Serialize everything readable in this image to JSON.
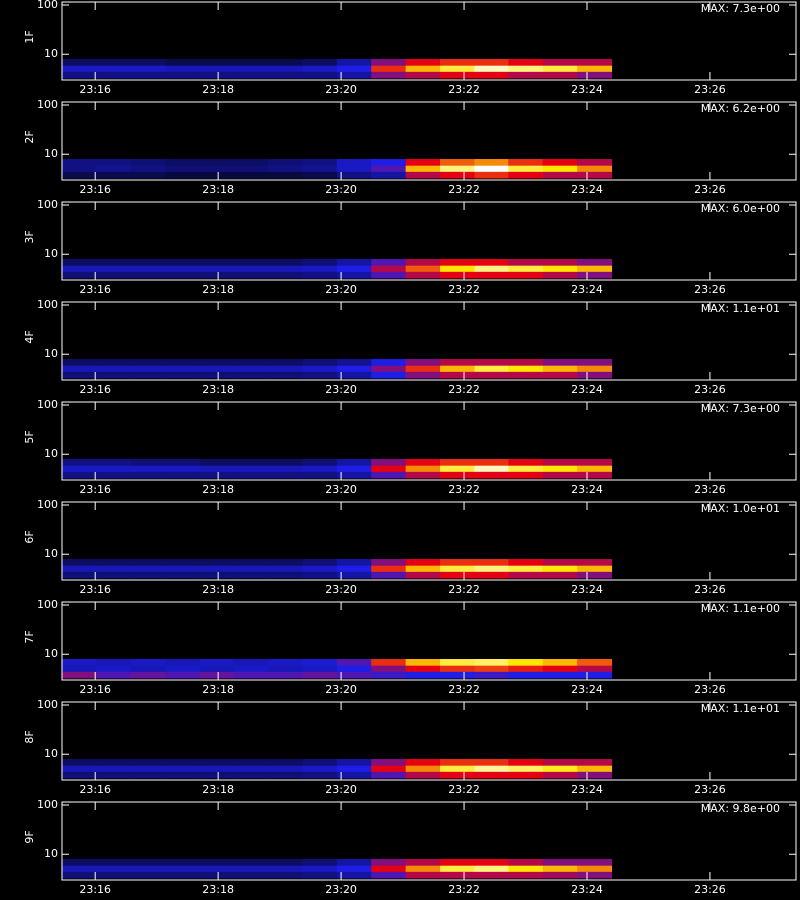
{
  "chart_data": {
    "type": "heatmap",
    "log_y": true,
    "xlim": [
      15.46,
      27.4
    ],
    "xticks": [
      {
        "value": 16,
        "label": "23:16"
      },
      {
        "value": 18,
        "label": "23:18"
      },
      {
        "value": 20,
        "label": "23:20"
      },
      {
        "value": 22,
        "label": "23:22"
      },
      {
        "value": 24,
        "label": "23:24"
      },
      {
        "value": 26,
        "label": "23:26"
      }
    ],
    "ylim": [
      3,
      115
    ],
    "yticks": [
      10,
      100
    ],
    "time_bins": [
      15.46,
      16.02,
      16.58,
      17.14,
      17.7,
      18.25,
      18.81,
      19.37,
      19.93,
      20.49,
      21.05,
      21.61,
      22.17,
      22.72,
      23.28,
      23.84,
      24.4
    ],
    "energy_bins": [
      3.3,
      4.5,
      6,
      8
    ],
    "panels": [
      {
        "label": "1F",
        "max_label": "MAX: 7.3e+00",
        "z": [
          [
            0.2,
            0.2,
            0.2,
            0.2,
            0.2,
            0.2,
            0.2,
            0.2,
            0.25,
            0.45,
            0.5,
            0.55,
            0.55,
            0.5,
            0.5,
            0.45
          ],
          [
            0.3,
            0.3,
            0.3,
            0.28,
            0.28,
            0.28,
            0.28,
            0.3,
            0.35,
            0.6,
            0.75,
            0.85,
            0.95,
            0.9,
            0.85,
            0.75
          ],
          [
            0.15,
            0.15,
            0.15,
            0.12,
            0.12,
            0.12,
            0.12,
            0.15,
            0.25,
            0.45,
            0.55,
            0.6,
            0.6,
            0.55,
            0.5,
            0.5
          ]
        ]
      },
      {
        "label": "2F",
        "max_label": "MAX: 6.2e+00",
        "z": [
          [
            0.12,
            0.12,
            0.12,
            0.1,
            0.1,
            0.1,
            0.1,
            0.12,
            0.2,
            0.25,
            0.5,
            0.55,
            0.6,
            0.55,
            0.5,
            0.5
          ],
          [
            0.2,
            0.22,
            0.2,
            0.18,
            0.18,
            0.18,
            0.2,
            0.22,
            0.3,
            0.4,
            0.75,
            0.9,
            1.0,
            0.85,
            0.8,
            0.7
          ],
          [
            0.2,
            0.2,
            0.18,
            0.15,
            0.15,
            0.15,
            0.18,
            0.2,
            0.3,
            0.35,
            0.55,
            0.65,
            0.7,
            0.6,
            0.55,
            0.5
          ]
        ]
      },
      {
        "label": "3F",
        "max_label": "MAX: 6.0e+00",
        "z": [
          [
            0.18,
            0.18,
            0.18,
            0.18,
            0.18,
            0.18,
            0.18,
            0.2,
            0.25,
            0.4,
            0.5,
            0.55,
            0.55,
            0.55,
            0.5,
            0.45
          ],
          [
            0.28,
            0.28,
            0.28,
            0.28,
            0.28,
            0.28,
            0.28,
            0.3,
            0.35,
            0.5,
            0.65,
            0.8,
            0.9,
            0.85,
            0.8,
            0.75
          ],
          [
            0.15,
            0.15,
            0.15,
            0.15,
            0.15,
            0.15,
            0.15,
            0.18,
            0.25,
            0.4,
            0.5,
            0.55,
            0.55,
            0.5,
            0.5,
            0.45
          ]
        ]
      },
      {
        "label": "4F",
        "max_label": "MAX: 1.1e+01",
        "z": [
          [
            0.18,
            0.18,
            0.18,
            0.18,
            0.18,
            0.18,
            0.18,
            0.2,
            0.25,
            0.35,
            0.45,
            0.5,
            0.5,
            0.5,
            0.5,
            0.45
          ],
          [
            0.28,
            0.28,
            0.28,
            0.28,
            0.28,
            0.28,
            0.28,
            0.3,
            0.35,
            0.45,
            0.6,
            0.75,
            0.85,
            0.8,
            0.75,
            0.7
          ],
          [
            0.15,
            0.15,
            0.15,
            0.15,
            0.15,
            0.15,
            0.15,
            0.18,
            0.22,
            0.35,
            0.45,
            0.5,
            0.5,
            0.5,
            0.45,
            0.45
          ]
        ]
      },
      {
        "label": "5F",
        "max_label": "MAX: 7.3e+00",
        "z": [
          [
            0.2,
            0.2,
            0.2,
            0.2,
            0.2,
            0.2,
            0.2,
            0.2,
            0.25,
            0.4,
            0.5,
            0.55,
            0.55,
            0.55,
            0.5,
            0.5
          ],
          [
            0.3,
            0.3,
            0.3,
            0.3,
            0.28,
            0.28,
            0.28,
            0.3,
            0.35,
            0.55,
            0.7,
            0.85,
            0.95,
            0.85,
            0.8,
            0.75
          ],
          [
            0.2,
            0.2,
            0.18,
            0.18,
            0.15,
            0.15,
            0.15,
            0.18,
            0.25,
            0.45,
            0.55,
            0.6,
            0.6,
            0.55,
            0.5,
            0.5
          ]
        ]
      },
      {
        "label": "6F",
        "max_label": "MAX: 1.0e+01",
        "z": [
          [
            0.18,
            0.18,
            0.18,
            0.18,
            0.18,
            0.18,
            0.18,
            0.2,
            0.25,
            0.4,
            0.5,
            0.55,
            0.55,
            0.5,
            0.5,
            0.45
          ],
          [
            0.28,
            0.28,
            0.28,
            0.28,
            0.28,
            0.28,
            0.28,
            0.3,
            0.35,
            0.6,
            0.75,
            0.85,
            0.9,
            0.85,
            0.8,
            0.75
          ],
          [
            0.15,
            0.15,
            0.15,
            0.15,
            0.15,
            0.15,
            0.15,
            0.18,
            0.25,
            0.45,
            0.55,
            0.6,
            0.6,
            0.55,
            0.5,
            0.5
          ]
        ]
      },
      {
        "label": "7F",
        "max_label": "MAX: 1.1e+00",
        "z": [
          [
            0.45,
            0.4,
            0.42,
            0.4,
            0.42,
            0.4,
            0.4,
            0.42,
            0.4,
            0.38,
            0.35,
            0.35,
            0.38,
            0.35,
            0.35,
            0.35
          ],
          [
            0.28,
            0.3,
            0.28,
            0.3,
            0.28,
            0.3,
            0.28,
            0.3,
            0.35,
            0.45,
            0.55,
            0.6,
            0.62,
            0.58,
            0.55,
            0.5
          ],
          [
            0.3,
            0.28,
            0.3,
            0.28,
            0.3,
            0.28,
            0.3,
            0.32,
            0.4,
            0.6,
            0.75,
            0.85,
            0.88,
            0.8,
            0.75,
            0.65
          ]
        ]
      },
      {
        "label": "8F",
        "max_label": "MAX: 1.1e+01",
        "z": [
          [
            0.18,
            0.18,
            0.18,
            0.18,
            0.18,
            0.18,
            0.18,
            0.2,
            0.25,
            0.4,
            0.5,
            0.55,
            0.55,
            0.55,
            0.5,
            0.45
          ],
          [
            0.28,
            0.28,
            0.28,
            0.28,
            0.28,
            0.28,
            0.28,
            0.3,
            0.35,
            0.55,
            0.7,
            0.85,
            0.92,
            0.88,
            0.82,
            0.75
          ],
          [
            0.15,
            0.15,
            0.15,
            0.15,
            0.15,
            0.15,
            0.15,
            0.18,
            0.25,
            0.45,
            0.55,
            0.6,
            0.6,
            0.55,
            0.5,
            0.5
          ]
        ]
      },
      {
        "label": "9F",
        "max_label": "MAX: 9.8e+00",
        "z": [
          [
            0.18,
            0.18,
            0.18,
            0.18,
            0.18,
            0.18,
            0.18,
            0.2,
            0.25,
            0.4,
            0.5,
            0.5,
            0.5,
            0.5,
            0.48,
            0.45
          ],
          [
            0.28,
            0.28,
            0.28,
            0.28,
            0.28,
            0.28,
            0.28,
            0.3,
            0.35,
            0.55,
            0.7,
            0.85,
            0.9,
            0.8,
            0.75,
            0.7
          ],
          [
            0.15,
            0.15,
            0.15,
            0.15,
            0.15,
            0.15,
            0.15,
            0.18,
            0.25,
            0.45,
            0.5,
            0.55,
            0.55,
            0.5,
            0.45,
            0.45
          ]
        ]
      }
    ]
  }
}
